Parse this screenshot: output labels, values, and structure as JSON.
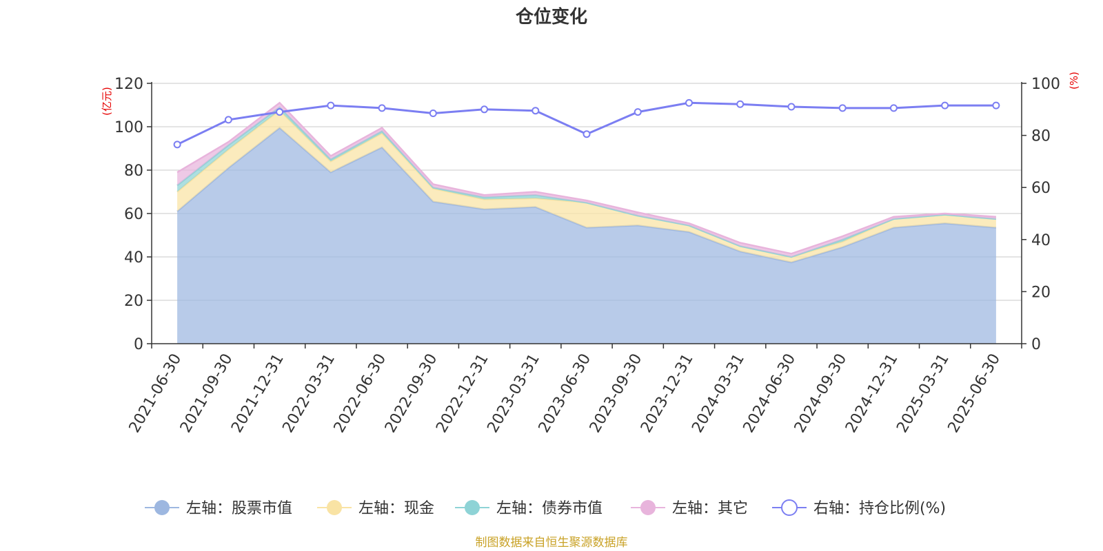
{
  "chart_data": {
    "type": "area",
    "title": "仓位变化",
    "left_axis_unit": "(亿元)",
    "right_axis_unit": "(%)",
    "categories": [
      "2021-06-30",
      "2021-09-30",
      "2021-12-31",
      "2022-03-31",
      "2022-06-30",
      "2022-09-30",
      "2022-12-31",
      "2023-03-31",
      "2023-06-30",
      "2023-09-30",
      "2023-12-31",
      "2024-03-31",
      "2024-06-30",
      "2024-09-30",
      "2024-12-31",
      "2025-03-31",
      "2025-06-30"
    ],
    "left_ylim": [
      0,
      120
    ],
    "left_yticks": [
      0,
      20,
      40,
      60,
      80,
      100,
      120
    ],
    "right_ylim": [
      0,
      100
    ],
    "right_yticks": [
      0,
      20,
      40,
      60,
      80,
      100
    ],
    "grid": true,
    "stacked": true,
    "series": [
      {
        "name": "左轴：股票市值",
        "axis": "left",
        "kind": "area",
        "color": "#9db7e0",
        "values": [
          61,
          81,
          99.5,
          79,
          90.5,
          65.5,
          62,
          63,
          53.5,
          54.5,
          51.5,
          42.5,
          37.5,
          44.5,
          53.5,
          55.5,
          53.5
        ]
      },
      {
        "name": "左轴：现金",
        "axis": "left",
        "kind": "area",
        "color": "#f9e3a4",
        "values": [
          9,
          8.5,
          8,
          5,
          6.5,
          6,
          4.5,
          4,
          11.5,
          4.5,
          3,
          2.5,
          2.5,
          2.5,
          4,
          4,
          4
        ]
      },
      {
        "name": "左轴：债券市值",
        "axis": "left",
        "kind": "area",
        "color": "#8ed3d6",
        "values": [
          3,
          2,
          1.5,
          1,
          1,
          0.5,
          1,
          1.5,
          0,
          0,
          0,
          0,
          0,
          1,
          0,
          0,
          0
        ]
      },
      {
        "name": "左轴：其它",
        "axis": "left",
        "kind": "area",
        "color": "#e8b4dc",
        "values": [
          6,
          1.5,
          2,
          1.5,
          1.5,
          1.5,
          1,
          1.5,
          1,
          1.5,
          1,
          1.5,
          1.5,
          1.5,
          1,
          0.5,
          1
        ]
      },
      {
        "name": "右轴：持仓比例(%)",
        "axis": "right",
        "kind": "line",
        "color": "#7b7ef2",
        "values": [
          76.5,
          86,
          89,
          91.5,
          90.5,
          88.5,
          90,
          89.5,
          80.5,
          89,
          92.5,
          92,
          91,
          90.5,
          90.5,
          91.5,
          91.5
        ]
      }
    ],
    "legend_position": "bottom"
  },
  "footer": {
    "source": "制图数据来自恒生聚源数据库"
  }
}
